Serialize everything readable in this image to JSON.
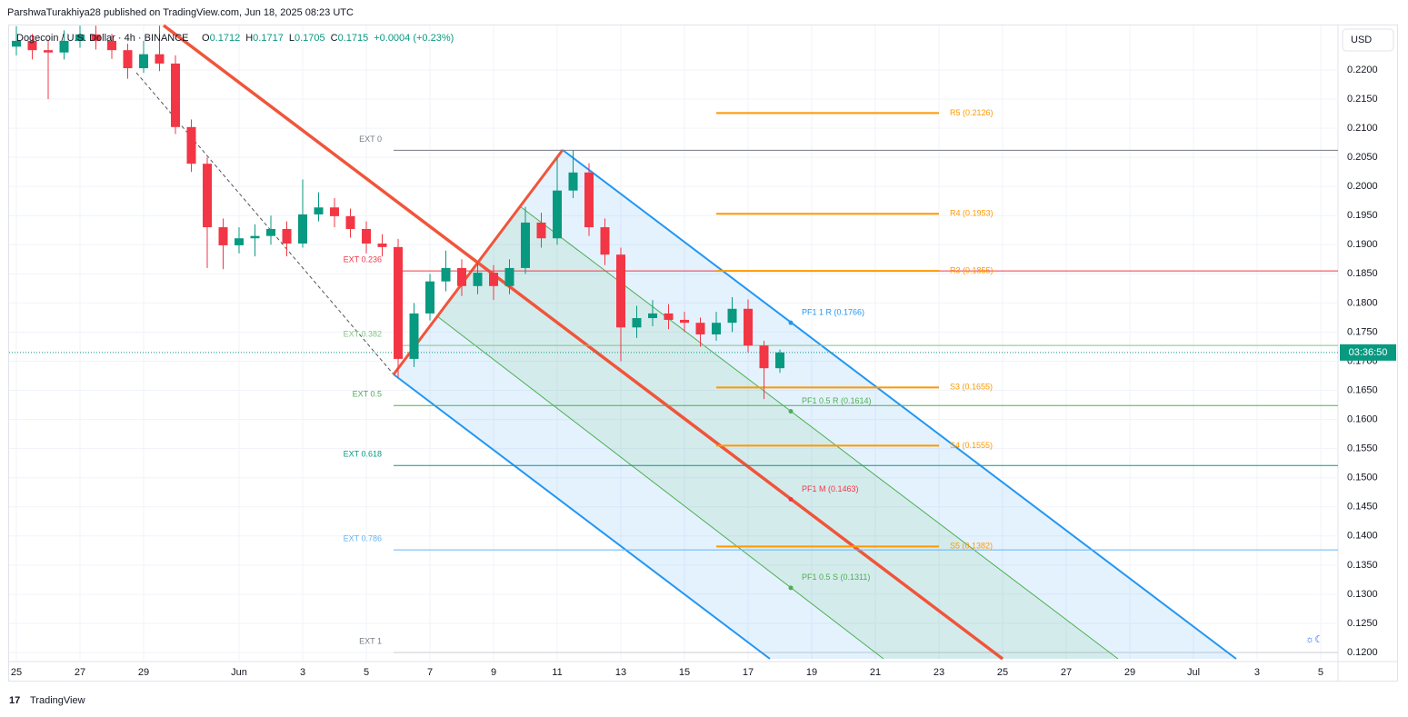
{
  "header": {
    "author_line": "ParshwaTurakhiya28 published on TradingView.com, Jun 18, 2025 08:23 UTC",
    "brand": "TradingView"
  },
  "chart_data": {
    "type": "candlestick",
    "symbol": "Dogecoin / U.S. Dollar · 4h · BINANCE",
    "ohlc_legend": [
      {
        "key": "O",
        "text": "0.1712"
      },
      {
        "key": "H",
        "text": "0.1717"
      },
      {
        "key": "L",
        "text": "0.1705"
      },
      {
        "key": "C",
        "text": "0.1715"
      }
    ],
    "change": "+0.0004 (+0.23%)",
    "currency": "USD",
    "countdown": "03:36:50",
    "last_price": 0.1715,
    "up_color": "#089981",
    "down_color": "#f23645",
    "x": [
      0,
      0.5,
      1,
      1.5,
      2,
      2.5,
      3,
      3.5,
      4,
      4.5,
      5,
      5.5,
      6,
      6.5,
      7,
      7.5,
      8,
      8.5,
      9,
      9.5,
      10,
      10.5,
      11,
      11.5,
      12,
      12.5,
      13,
      13.5,
      14,
      14.5,
      15,
      15.5,
      16,
      16.5,
      17,
      17.5,
      18,
      18.5,
      19,
      19.5,
      20,
      20.5,
      21,
      21.5,
      22,
      22.5,
      23,
      23.5,
      24
    ],
    "open": [
      0.224,
      0.225,
      0.2234,
      0.223,
      0.225,
      0.2261,
      0.225,
      0.2234,
      0.2203,
      0.2227,
      0.2211,
      0.2102,
      0.2039,
      0.193,
      0.1899,
      0.1911,
      0.1915,
      0.1927,
      0.1902,
      0.1952,
      0.1964,
      0.1949,
      0.1927,
      0.1902,
      0.1896,
      0.1704,
      0.1782,
      0.1837,
      0.186,
      0.1829,
      0.1852,
      0.1829,
      0.186,
      0.1938,
      0.1911,
      0.1993,
      0.2024,
      0.193,
      0.1883,
      0.1758,
      0.1774,
      0.1782,
      0.1771,
      0.1766,
      0.1746,
      0.1766,
      0.179,
      0.1727,
      0.1688
    ],
    "high": [
      0.2275,
      0.2262,
      0.2252,
      0.2268,
      0.2276,
      0.2276,
      0.2262,
      0.2245,
      0.225,
      0.2276,
      0.2225,
      0.2115,
      0.205,
      0.1945,
      0.193,
      0.1935,
      0.195,
      0.194,
      0.2012,
      0.199,
      0.198,
      0.1962,
      0.194,
      0.1918,
      0.191,
      0.18,
      0.185,
      0.189,
      0.1875,
      0.187,
      0.1865,
      0.1875,
      0.1965,
      0.1955,
      0.205,
      0.2062,
      0.204,
      0.1945,
      0.1895,
      0.1795,
      0.1805,
      0.1798,
      0.1785,
      0.1775,
      0.1785,
      0.181,
      0.1806,
      0.1735,
      0.172
    ],
    "low": [
      0.2225,
      0.2218,
      0.215,
      0.2218,
      0.2238,
      0.2235,
      0.2219,
      0.2185,
      0.2195,
      0.2198,
      0.209,
      0.2025,
      0.186,
      0.1858,
      0.1885,
      0.188,
      0.19,
      0.188,
      0.1895,
      0.194,
      0.193,
      0.1912,
      0.1885,
      0.188,
      0.1672,
      0.169,
      0.177,
      0.182,
      0.1812,
      0.1815,
      0.1805,
      0.1815,
      0.185,
      0.1895,
      0.19,
      0.198,
      0.1915,
      0.1865,
      0.17,
      0.174,
      0.176,
      0.1755,
      0.175,
      0.1725,
      0.1735,
      0.175,
      0.1715,
      0.1635,
      0.168
    ],
    "close": [
      0.225,
      0.2234,
      0.223,
      0.225,
      0.2261,
      0.225,
      0.2234,
      0.2203,
      0.2227,
      0.2211,
      0.2102,
      0.2039,
      0.193,
      0.1899,
      0.1911,
      0.1915,
      0.1927,
      0.1902,
      0.1952,
      0.1964,
      0.1949,
      0.1927,
      0.1902,
      0.1896,
      0.1704,
      0.1782,
      0.1837,
      0.186,
      0.1829,
      0.1852,
      0.1829,
      0.186,
      0.1938,
      0.1911,
      0.1993,
      0.2024,
      0.193,
      0.1883,
      0.1758,
      0.1774,
      0.1782,
      0.1771,
      0.1766,
      0.1746,
      0.1766,
      0.179,
      0.1727,
      0.1688,
      0.1715
    ],
    "xlim": [
      -0.229,
      41.543
    ],
    "ylim": [
      0.11844,
      0.22764
    ],
    "xticks": [
      {
        "value": 0,
        "label": "25"
      },
      {
        "value": 2,
        "label": "27"
      },
      {
        "value": 4,
        "label": "29"
      },
      {
        "value": 7,
        "label": "Jun"
      },
      {
        "value": 9,
        "label": "3"
      },
      {
        "value": 11,
        "label": "5"
      },
      {
        "value": 13,
        "label": "7"
      },
      {
        "value": 15,
        "label": "9"
      },
      {
        "value": 17,
        "label": "11"
      },
      {
        "value": 19,
        "label": "13"
      },
      {
        "value": 21,
        "label": "15"
      },
      {
        "value": 23,
        "label": "17"
      },
      {
        "value": 25,
        "label": "19"
      },
      {
        "value": 27,
        "label": "21"
      },
      {
        "value": 29,
        "label": "23"
      },
      {
        "value": 31,
        "label": "25"
      },
      {
        "value": 33,
        "label": "27"
      },
      {
        "value": 35,
        "label": "29"
      },
      {
        "value": 37,
        "label": "Jul"
      },
      {
        "value": 39,
        "label": "3"
      },
      {
        "value": 41,
        "label": "5"
      }
    ],
    "yticks": [
      {
        "value": 0.22,
        "label": "0.2200"
      },
      {
        "value": 0.215,
        "label": "0.2150"
      },
      {
        "value": 0.21,
        "label": "0.2100"
      },
      {
        "value": 0.205,
        "label": "0.2050"
      },
      {
        "value": 0.2,
        "label": "0.2000"
      },
      {
        "value": 0.195,
        "label": "0.1950"
      },
      {
        "value": 0.19,
        "label": "0.1900"
      },
      {
        "value": 0.185,
        "label": "0.1850"
      },
      {
        "value": 0.18,
        "label": "0.1800"
      },
      {
        "value": 0.175,
        "label": "0.1750"
      },
      {
        "value": 0.17,
        "label": "0.1700"
      },
      {
        "value": 0.165,
        "label": "0.1650"
      },
      {
        "value": 0.16,
        "label": "0.1600"
      },
      {
        "value": 0.155,
        "label": "0.1550"
      },
      {
        "value": 0.15,
        "label": "0.1500"
      },
      {
        "value": 0.145,
        "label": "0.1450"
      },
      {
        "value": 0.14,
        "label": "0.1400"
      },
      {
        "value": 0.135,
        "label": "0.1350"
      },
      {
        "value": 0.13,
        "label": "0.1300"
      },
      {
        "value": 0.125,
        "label": "0.1250"
      },
      {
        "value": 0.12,
        "label": "0.1200"
      }
    ],
    "grid": true,
    "levels": [
      {
        "label": "EXT 0",
        "value": 0.2062,
        "color": "#787b86"
      },
      {
        "label": "EXT 0.236",
        "value": 0.1855,
        "color": "#f23645"
      },
      {
        "label": "EXT 0.382",
        "value": 0.1727,
        "color": "#81c784"
      },
      {
        "label": "EXT 0.5",
        "value": 0.1624,
        "color": "#4caf50"
      },
      {
        "label": "EXT 0.618",
        "value": 0.1521,
        "color": "#089981"
      },
      {
        "label": "EXT 0.786",
        "value": 0.1376,
        "color": "#64b5f6"
      },
      {
        "label": "EXT 1",
        "value": 0.12,
        "color": "#787b86"
      }
    ],
    "pivots": [
      {
        "label": "R5 (0.2126)",
        "value": 0.2126
      },
      {
        "label": "R4 (0.1953)",
        "value": 0.1953
      },
      {
        "label": "R3 (0.1855)",
        "value": 0.1855
      },
      {
        "label": "S3 (0.1655)",
        "value": 0.1655
      },
      {
        "label": "S4 (0.1555)",
        "value": 0.1555
      },
      {
        "label": "S5 (0.1382)",
        "value": 0.1382
      }
    ],
    "pivot_color": "#ff9800",
    "pitchfork_labels": [
      {
        "label": "PF1 1 R (0.1766)",
        "value": 0.1766,
        "color": "#2196f3"
      },
      {
        "label": "PF1 0.5 R (0.1614)",
        "value": 0.1614,
        "color": "#4caf50"
      },
      {
        "label": "PF1 M (0.1463)",
        "value": 0.1463,
        "color": "#f23645"
      },
      {
        "label": "PF1 0.5 S (0.1311)",
        "value": 0.1311,
        "color": "#4caf50"
      }
    ]
  }
}
